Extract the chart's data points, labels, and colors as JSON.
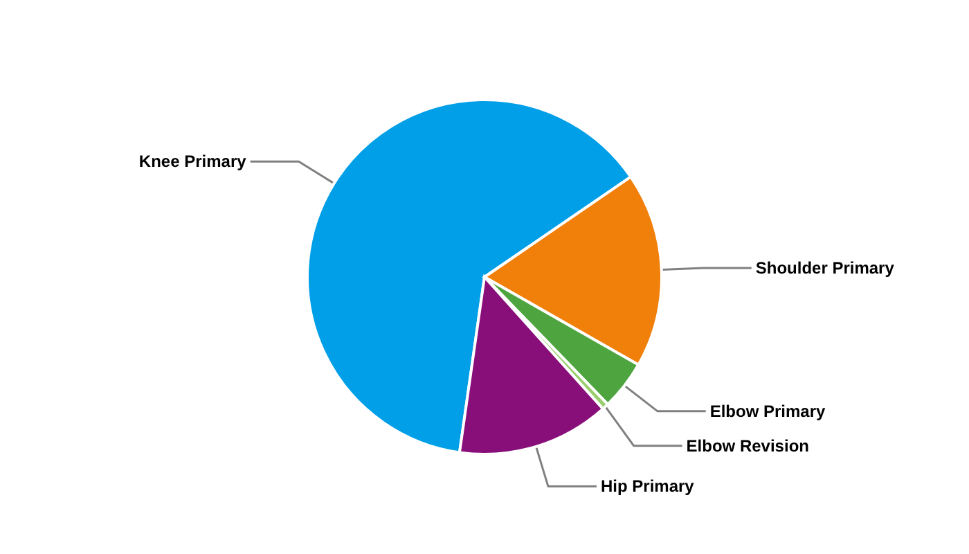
{
  "chart_data": {
    "type": "pie",
    "categories": [
      "Knee Primary",
      "Shoulder Primary",
      "Elbow Primary",
      "Elbow Revision",
      "Hip Primary"
    ],
    "values": [
      63.2,
      17.8,
      4.5,
      0.6,
      13.9
    ],
    "colors": [
      "#009fe8",
      "#f0800a",
      "#4ea540",
      "#9acd6e",
      "#880e7a"
    ]
  }
}
